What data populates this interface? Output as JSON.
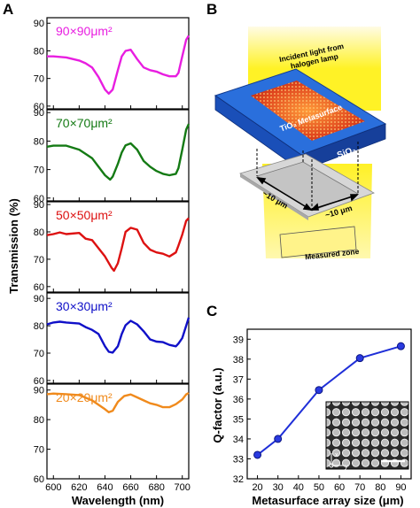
{
  "figure": {
    "panel_labels": {
      "a": "A",
      "b": "B",
      "c": "C"
    },
    "diagram": {
      "incident_light": "Incident light from halogen lamp",
      "metasurface_label": "TiO₂ Metasurface",
      "substrate_label": "SiO₂",
      "dim_a": "~10 μm",
      "dim_b": "~10 μm",
      "zone_label": "Measured zone"
    },
    "inset": {
      "x_axis": "x",
      "y_axis": "y"
    }
  },
  "colors": {
    "c90": "#e81ee0",
    "c70": "#147a14",
    "c50": "#dd1111",
    "c30": "#1010c8",
    "c20": "#f08a1c",
    "qline": "#1f2fd8"
  },
  "chart_data": [
    {
      "type": "line",
      "panel": "A",
      "xlabel": "Wavelength (nm)",
      "ylabel": "Transmission (%)",
      "xlim": [
        595,
        705
      ],
      "xticks": [
        "600",
        "620",
        "640",
        "660",
        "680",
        "700"
      ],
      "subplots": [
        {
          "label": "90×90μm²",
          "color_key": "c90",
          "ylim": [
            59,
            92
          ],
          "yticks": [
            "60",
            "70",
            "80",
            "90"
          ],
          "x": [
            595,
            600,
            610,
            620,
            625,
            630,
            635,
            640,
            643,
            646,
            650,
            653,
            656,
            660,
            665,
            670,
            675,
            680,
            685,
            690,
            695,
            697,
            700,
            703,
            705
          ],
          "y": [
            78,
            78,
            77.6,
            76.5,
            75.5,
            74,
            70.5,
            66,
            64.5,
            66,
            73,
            78,
            80,
            80.4,
            77,
            74,
            73,
            72.5,
            71.5,
            70.8,
            70.8,
            72,
            78,
            84,
            85.5
          ]
        },
        {
          "label": "70×70μm²",
          "color_key": "c70",
          "ylim": [
            59,
            91
          ],
          "yticks": [
            "60",
            "70",
            "80",
            "90"
          ],
          "x": [
            595,
            600,
            610,
            620,
            625,
            630,
            635,
            640,
            644,
            646,
            650,
            653,
            656,
            660,
            665,
            670,
            675,
            680,
            685,
            690,
            695,
            697,
            700,
            703,
            705
          ],
          "y": [
            78,
            78.4,
            78.4,
            77,
            75.5,
            74,
            71,
            68,
            66.5,
            67.5,
            72,
            76,
            78.5,
            79.2,
            77,
            73,
            71,
            69.5,
            68.5,
            68,
            68.5,
            70.5,
            77,
            84,
            86
          ]
        },
        {
          "label": "50×50μm²",
          "color_key": "c50",
          "ylim": [
            58,
            91
          ],
          "yticks": [
            "60",
            "70",
            "80",
            "90"
          ],
          "x": [
            595,
            600,
            605,
            610,
            620,
            625,
            630,
            635,
            640,
            645,
            647,
            650,
            653,
            656,
            660,
            665,
            670,
            675,
            680,
            685,
            690,
            695,
            697,
            700,
            703,
            705
          ],
          "y": [
            78.8,
            79.2,
            79.8,
            79.2,
            79.6,
            77.5,
            77,
            74,
            71,
            67,
            65.8,
            68.5,
            74,
            80,
            81.5,
            80.8,
            76,
            73.5,
            72.5,
            72,
            71,
            72.5,
            75,
            79,
            84,
            85
          ]
        },
        {
          "label": "30×30μm²",
          "color_key": "c30",
          "ylim": [
            59,
            92
          ],
          "yticks": [
            "60",
            "70",
            "80",
            "90"
          ],
          "x": [
            595,
            600,
            605,
            610,
            620,
            625,
            630,
            635,
            640,
            643,
            646,
            650,
            653,
            656,
            660,
            665,
            670,
            675,
            680,
            685,
            690,
            695,
            697,
            700,
            703,
            705
          ],
          "y": [
            80.5,
            81.2,
            81.5,
            81.2,
            80.8,
            79.5,
            78.5,
            77,
            72.5,
            70.5,
            70.2,
            72.5,
            77,
            80.2,
            81.8,
            80.5,
            78,
            75,
            74.2,
            74,
            73,
            72.5,
            73.5,
            75.5,
            80,
            83
          ]
        },
        {
          "label": "20×20μm²",
          "color_key": "c20",
          "ylim": [
            60,
            92
          ],
          "yticks": [
            "60",
            "70",
            "80",
            "90"
          ],
          "x": [
            595,
            600,
            610,
            620,
            630,
            640,
            643,
            646,
            650,
            655,
            660,
            665,
            670,
            675,
            680,
            685,
            690,
            695,
            700,
            703,
            705
          ],
          "y": [
            88.6,
            88.8,
            88.6,
            88.3,
            86.5,
            83.5,
            82.5,
            83,
            86,
            88,
            88.5,
            87.5,
            86.5,
            85.5,
            85,
            84.2,
            84.2,
            85.2,
            86.8,
            88.5,
            89
          ]
        }
      ]
    },
    {
      "type": "scatter",
      "panel": "C",
      "xlabel": "Metasurface array size (μm)",
      "ylabel": "Q-factor (a.u.)",
      "xlim": [
        15,
        95
      ],
      "ylim": [
        32,
        39.5
      ],
      "xticks": [
        "20",
        "30",
        "40",
        "50",
        "60",
        "70",
        "80",
        "90"
      ],
      "yticks": [
        "32",
        "33",
        "34",
        "35",
        "36",
        "37",
        "38",
        "39"
      ],
      "x": [
        20,
        30,
        50,
        70,
        90
      ],
      "y": [
        33.2,
        34.0,
        36.45,
        38.05,
        38.65
      ]
    }
  ]
}
